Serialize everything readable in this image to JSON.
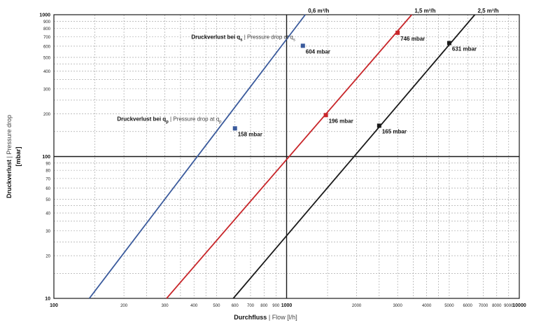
{
  "chart_data": {
    "type": "line",
    "x_scale": "log",
    "y_scale": "log",
    "xlim": [
      100,
      10000
    ],
    "ylim": [
      10,
      1000
    ],
    "grid": true,
    "xlabel": {
      "main": "Durchfluss",
      "sep": "|",
      "sub": "Flow [l/h]"
    },
    "ylabel": {
      "main": "Druckverlust",
      "sep": "|",
      "sub": "Pressure drop",
      "unit": "[mbar]"
    },
    "x_ticks": [
      {
        "value": 100,
        "label": "100",
        "major": true
      },
      {
        "value": 200,
        "label": "200"
      },
      {
        "value": 300,
        "label": "300"
      },
      {
        "value": 400,
        "label": "400"
      },
      {
        "value": 500,
        "label": "500"
      },
      {
        "value": 600,
        "label": "600"
      },
      {
        "value": 700,
        "label": "700"
      },
      {
        "value": 800,
        "label": "800"
      },
      {
        "value": 900,
        "label": "900"
      },
      {
        "value": 1000,
        "label": "1000",
        "major": true
      },
      {
        "value": 2000,
        "label": "2000"
      },
      {
        "value": 3000,
        "label": "3000"
      },
      {
        "value": 4000,
        "label": "4000"
      },
      {
        "value": 5000,
        "label": "5000"
      },
      {
        "value": 6000,
        "label": "6000"
      },
      {
        "value": 7000,
        "label": "7000"
      },
      {
        "value": 8000,
        "label": "8000"
      },
      {
        "value": 9000,
        "label": "9000"
      },
      {
        "value": 10000,
        "label": "10000",
        "major": true
      }
    ],
    "y_ticks": [
      {
        "value": 10,
        "label": "10",
        "major": true
      },
      {
        "value": 20,
        "label": "20"
      },
      {
        "value": 30,
        "label": "30"
      },
      {
        "value": 40,
        "label": "40"
      },
      {
        "value": 50,
        "label": "50"
      },
      {
        "value": 60,
        "label": "60"
      },
      {
        "value": 70,
        "label": "70"
      },
      {
        "value": 80,
        "label": "80"
      },
      {
        "value": 90,
        "label": "90"
      },
      {
        "value": 100,
        "label": "100",
        "major": true
      },
      {
        "value": 200,
        "label": "200"
      },
      {
        "value": 300,
        "label": "300"
      },
      {
        "value": 400,
        "label": "400"
      },
      {
        "value": 500,
        "label": "500"
      },
      {
        "value": 600,
        "label": "600"
      },
      {
        "value": 700,
        "label": "700"
      },
      {
        "value": 800,
        "label": "800"
      },
      {
        "value": 900,
        "label": "900"
      },
      {
        "value": 1000,
        "label": "1000",
        "major": true
      }
    ],
    "reference_lines": {
      "x": 1000,
      "y": 100
    },
    "series": [
      {
        "name": "0,6 m³/h",
        "color": "#3a5a9c",
        "line": [
          [
            142,
            10
          ],
          [
            1203,
            1000
          ]
        ],
        "markers": [
          {
            "x": 600,
            "y": 158,
            "label": "158 mbar"
          },
          {
            "x": 1175,
            "y": 604,
            "label": "604 mbar"
          }
        ]
      },
      {
        "name": "1,5 m³/h",
        "color": "#c8262a",
        "line": [
          [
            305,
            10
          ],
          [
            3450,
            1000
          ]
        ],
        "markers": [
          {
            "x": 1475,
            "y": 196,
            "label": "196 mbar"
          },
          {
            "x": 3000,
            "y": 746,
            "label": "746 mbar"
          }
        ]
      },
      {
        "name": "2,5 m³/h",
        "color": "#1a1a1a",
        "line": [
          [
            590,
            10
          ],
          [
            6440,
            1000
          ]
        ],
        "markers": [
          {
            "x": 2500,
            "y": 165,
            "label": "165 mbar"
          },
          {
            "x": 5000,
            "y": 631,
            "label": "631 mbar"
          }
        ]
      }
    ],
    "annotations": [
      {
        "bold": "Druckverlust bei q",
        "sub": "s",
        "sep": "|",
        "normal": "Pressure drop at q",
        "normal_sub": "s",
        "at": {
          "x": 1120,
          "y": 700
        }
      },
      {
        "bold": "Druckverlust bei q",
        "sub": "p",
        "sep": "|",
        "normal": "Pressure drop at q",
        "normal_sub": "p",
        "at": {
          "x": 540,
          "y": 185
        }
      }
    ]
  }
}
